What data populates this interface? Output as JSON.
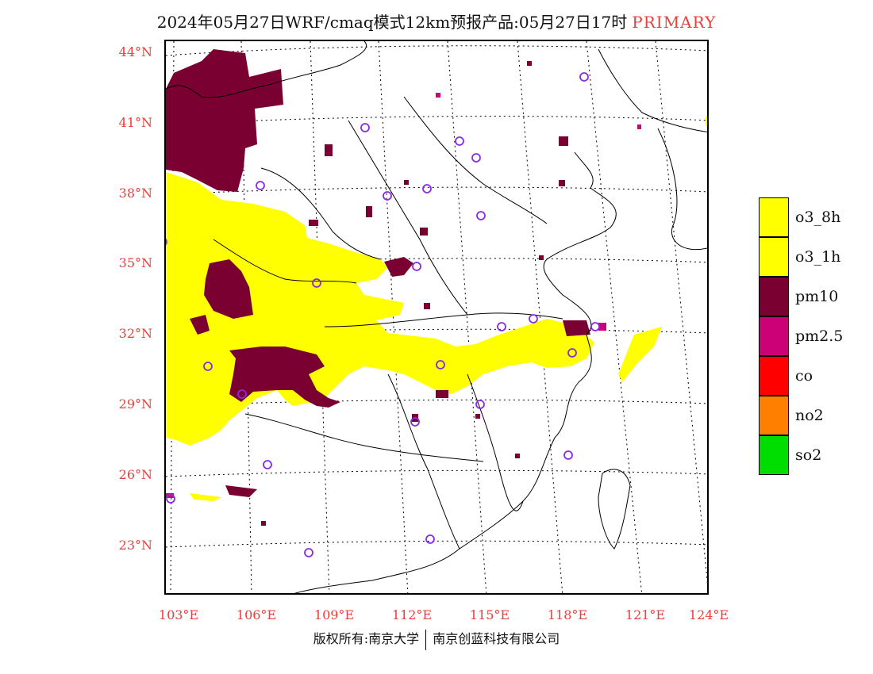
{
  "title": {
    "main": "2024年05月27日WRF/cmaq模式12km预报产品:05月27日17时",
    "tag": "PRIMARY"
  },
  "axes": {
    "latitude_labels": [
      "44°N",
      "41°N",
      "38°N",
      "35°N",
      "32°N",
      "29°N",
      "26°N",
      "23°N"
    ],
    "longitude_labels": [
      "103°E",
      "106°E",
      "109°E",
      "112°E",
      "115°E",
      "118°E",
      "121°E",
      "124°E"
    ]
  },
  "legend": {
    "items": [
      {
        "label": "o3_8h",
        "color": "#ffff00"
      },
      {
        "label": "o3_1h",
        "color": "#ffff00"
      },
      {
        "label": "pm10",
        "color": "#7a0032"
      },
      {
        "label": "pm2.5",
        "color": "#cc0077"
      },
      {
        "label": "co",
        "color": "#ff0000"
      },
      {
        "label": "no2",
        "color": "#ff7f00"
      },
      {
        "label": "so2",
        "color": "#00dd00"
      }
    ]
  },
  "footer": {
    "left": "版权所有:南京大学",
    "right": "南京创蓝科技有限公司"
  },
  "colors": {
    "o3": "#ffff00",
    "pm10": "#7a0032",
    "pm25": "#cc0077",
    "station_marker": "#8a2be2",
    "label_red": "#e8403c"
  }
}
